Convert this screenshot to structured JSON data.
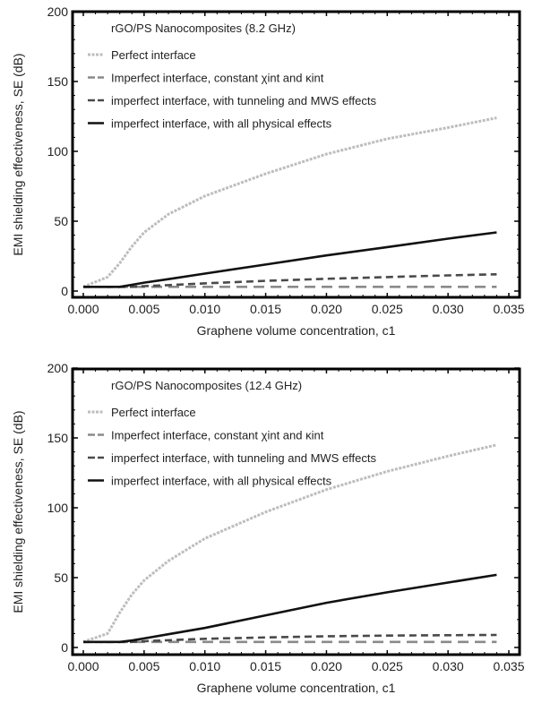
{
  "chart_data": [
    {
      "type": "line",
      "title": "rGO/PS Nanocomposites (8.2 GHz)",
      "xlabel": "Graphene volume concentration, c1",
      "ylabel": "EMI shielding effectiveness, SE (dB)",
      "xlim": [
        0,
        0.035
      ],
      "ylim": [
        0,
        200
      ],
      "xticks": [
        "0.000",
        "0.005",
        "0.010",
        "0.015",
        "0.020",
        "0.025",
        "0.030",
        "0.035"
      ],
      "yticks": [
        "0",
        "50",
        "100",
        "150",
        "200"
      ],
      "grid": false,
      "legend_position": "top-left",
      "x": [
        0,
        0.002,
        0.003,
        0.004,
        0.005,
        0.007,
        0.01,
        0.015,
        0.02,
        0.025,
        0.03,
        0.034
      ],
      "series": [
        {
          "name": "Perfect interface",
          "style": "dotted",
          "color": "#bdbdbd",
          "values": [
            3,
            10,
            20,
            32,
            42,
            55,
            68,
            84,
            98,
            109,
            117,
            124
          ]
        },
        {
          "name": "Imperfect interface, constant χint and κint",
          "style": "long-dash",
          "color": "#8a8a8a",
          "values": [
            3,
            3,
            3,
            3,
            3,
            3,
            3,
            3,
            3,
            3,
            3,
            3
          ]
        },
        {
          "name": "imperfect interface, with tunneling and MWS effects",
          "style": "dash",
          "color": "#4a4a4a",
          "values": [
            3,
            3,
            3,
            3,
            3.5,
            4.2,
            5.5,
            7.3,
            8.8,
            10,
            11.2,
            12
          ]
        },
        {
          "name": "imperfect interface, with all physical effects",
          "style": "solid",
          "color": "#111111",
          "values": [
            3,
            3,
            3,
            4.5,
            6,
            8.5,
            12.5,
            19,
            25.5,
            31.5,
            37.5,
            42
          ]
        }
      ]
    },
    {
      "type": "line",
      "title": "rGO/PS Nanocomposites (12.4 GHz)",
      "xlabel": "Graphene volume concentration, c1",
      "ylabel": "EMI shielding effectiveness, SE (dB)",
      "xlim": [
        0,
        0.035
      ],
      "ylim": [
        0,
        200
      ],
      "xticks": [
        "0.000",
        "0.005",
        "0.010",
        "0.015",
        "0.020",
        "0.025",
        "0.030",
        "0.035"
      ],
      "yticks": [
        "0",
        "50",
        "100",
        "150",
        "200"
      ],
      "grid": false,
      "legend_position": "top-left",
      "x": [
        0,
        0.002,
        0.003,
        0.004,
        0.005,
        0.007,
        0.01,
        0.015,
        0.02,
        0.025,
        0.03,
        0.034
      ],
      "series": [
        {
          "name": "Perfect interface",
          "style": "dotted",
          "color": "#bdbdbd",
          "values": [
            4,
            10,
            25,
            38,
            48,
            62,
            78,
            97,
            113,
            126,
            137,
            145
          ]
        },
        {
          "name": "Imperfect interface, constant χint and κint",
          "style": "long-dash",
          "color": "#8a8a8a",
          "values": [
            4,
            4,
            4,
            4,
            4,
            4,
            4,
            4,
            4,
            4,
            4,
            4
          ]
        },
        {
          "name": "imperfect interface, with tunneling and MWS effects",
          "style": "dash",
          "color": "#4a4a4a",
          "values": [
            4,
            4,
            4,
            4,
            4.5,
            5.2,
            6.2,
            7.2,
            8,
            8.5,
            8.8,
            9
          ]
        },
        {
          "name": "imperfect interface, with all physical effects",
          "style": "solid",
          "color": "#111111",
          "values": [
            4,
            4,
            4,
            5,
            6.5,
            9.5,
            14,
            23,
            32,
            39.5,
            46.5,
            52
          ]
        }
      ]
    }
  ]
}
